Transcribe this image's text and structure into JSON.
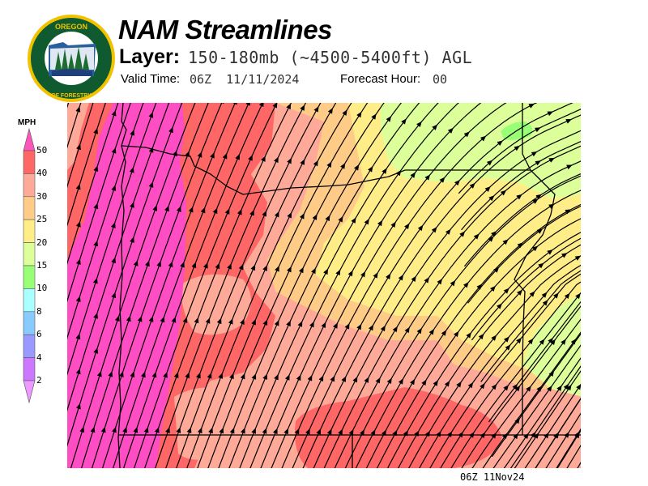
{
  "header": {
    "logo_text": "OREGON DEPARTMENT OF FORESTRY",
    "title": "NAM Streamlines",
    "layer_label": "Layer:",
    "layer_value": "150-180mb (~4500-5400ft) AGL",
    "valid_time_label": "Valid Time:",
    "valid_time_value": "06Z  11/11/2024",
    "forecast_hour_label": "Forecast Hour:",
    "forecast_hour_value": "00"
  },
  "colorbar": {
    "unit": "MPH",
    "ticks": [
      "50",
      "40",
      "30",
      "25",
      "20",
      "15",
      "10",
      "8",
      "6",
      "4",
      "2"
    ],
    "colors": {
      "over": "#ff55bb",
      "40-50": "#ff6666",
      "30-40": "#ffaa99",
      "25-30": "#ffcc88",
      "20-25": "#ffee88",
      "15-20": "#ddff99",
      "10-15": "#99ff77",
      "8-10": "#aaffff",
      "6-8": "#88ccff",
      "4-6": "#9999ff",
      "2-4": "#cc77ff",
      "under": "#ee99ff"
    }
  },
  "map": {
    "region": "Oregon",
    "flow": "southwest to northeast"
  },
  "footer": {
    "stamp": "06Z 11Nov24"
  }
}
